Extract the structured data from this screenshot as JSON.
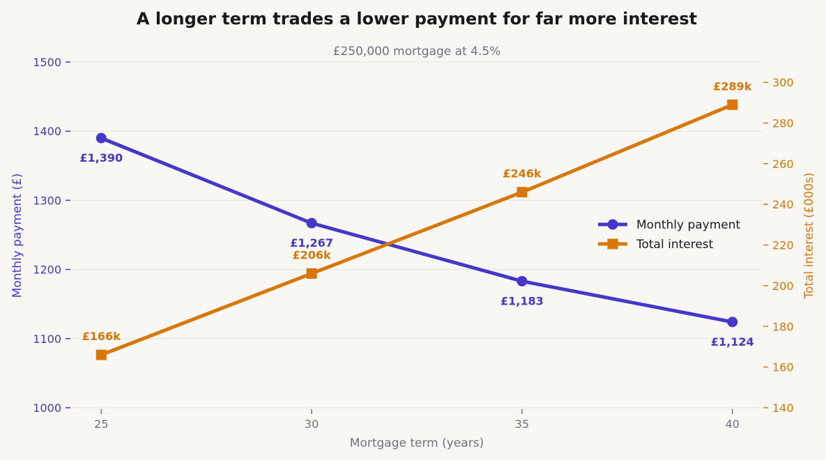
{
  "chart_data": {
    "type": "line",
    "title": "A longer term trades a lower payment for far more interest",
    "subtitle": "£250,000 mortgage at 4.5%",
    "xlabel": "Mortgage term (years)",
    "ylabel_left": "Monthly payment (£)",
    "ylabel_right": "Total interest (£000s)",
    "x": [
      25,
      30,
      35,
      40
    ],
    "xlim": [
      24.3,
      40.7
    ],
    "ylim_left": [
      1000,
      1500
    ],
    "ylim_right": [
      140,
      310
    ],
    "yticks_left": [
      1000,
      1100,
      1200,
      1300,
      1400,
      1500
    ],
    "yticks_right": [
      140,
      160,
      180,
      200,
      220,
      240,
      260,
      280,
      300
    ],
    "grid": true,
    "legend_placement": "center-right",
    "series": [
      {
        "name": "Monthly payment",
        "axis": "left",
        "marker": "circle",
        "color": "#4338ca",
        "values": [
          1390,
          1267,
          1183,
          1124
        ],
        "labels": [
          "£1,390",
          "£1,267",
          "£1,183",
          "£1,124"
        ]
      },
      {
        "name": "Total interest",
        "axis": "right",
        "marker": "square",
        "color": "#d97706",
        "values": [
          166,
          206,
          246,
          289
        ],
        "labels": [
          "£166k",
          "£206k",
          "£246k",
          "£289k"
        ]
      }
    ]
  }
}
